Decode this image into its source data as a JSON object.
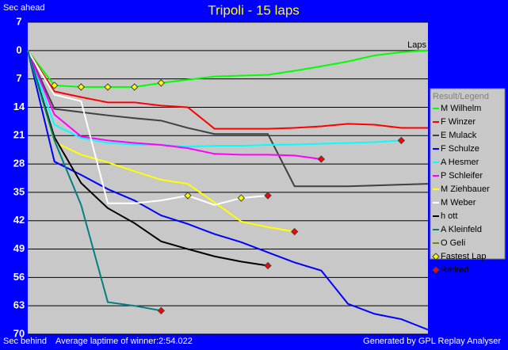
{
  "chart_data": {
    "type": "line",
    "title": "Tripoli - 15 laps",
    "y_top_label": "Sec ahead",
    "y_bottom_label": "Sec behind",
    "x_label": "Laps",
    "footer_left": "Average laptime of winner:2:54.022",
    "footer_right": "Generated by GPL Replay Analyser",
    "legend_title": "Result/Legend",
    "x": [
      0,
      1,
      2,
      3,
      4,
      5,
      6,
      7,
      8,
      9,
      10,
      11,
      12,
      13,
      14,
      15
    ],
    "xlim": [
      0,
      15
    ],
    "ylim": [
      -7,
      70
    ],
    "inverted_y": true,
    "yticks": [
      {
        "value": -7,
        "label": "7"
      },
      0,
      7,
      14,
      21,
      28,
      35,
      42,
      49,
      56,
      63,
      70
    ],
    "grid": true,
    "series": [
      {
        "name": "M Wilhelm",
        "color": "#00ff00",
        "values": [
          0,
          8.6,
          9,
          9,
          9,
          8,
          7.2,
          6.4,
          6.2,
          6,
          5,
          3.9,
          2.7,
          1.2,
          0.4,
          0
        ],
        "fastest_laps": [
          1,
          2,
          3,
          4,
          5
        ],
        "retired": false
      },
      {
        "name": "F Winzer",
        "color": "#ff0000",
        "values": [
          0,
          10.1,
          11.5,
          12.8,
          12.8,
          13.6,
          14,
          19.3,
          19.3,
          19.3,
          19.1,
          18.7,
          18.1,
          18.3,
          19.1,
          19.1
        ],
        "fastest_laps": [],
        "retired": false
      },
      {
        "name": "E Mulack",
        "color": "#404040",
        "values": [
          0,
          14.4,
          15.2,
          16,
          16.7,
          17.3,
          19.1,
          20.6,
          20.6,
          20.6,
          33.5,
          33.5,
          33.5,
          33.3,
          33.1,
          32.9
        ],
        "fastest_laps": [],
        "retired": false
      },
      {
        "name": "F Schulze",
        "color": "#0000ff",
        "values": [
          0,
          27.4,
          30.7,
          34.2,
          37,
          40.7,
          42.8,
          45.3,
          47.3,
          49.8,
          52.3,
          54.3,
          62.5,
          65,
          66.3,
          68.9
        ],
        "fastest_laps": [],
        "retired": false
      },
      {
        "name": "A Hesmer",
        "color": "#00ffff",
        "values": [
          0,
          18.3,
          21.6,
          22.8,
          23.2,
          23.3,
          23.7,
          23.5,
          23.5,
          23.3,
          23.2,
          23,
          22.8,
          22.6,
          22.2,
          null
        ],
        "fastest_laps": [],
        "retired": true
      },
      {
        "name": "P Schleifer",
        "color": "#ff00ff",
        "values": [
          0,
          15.8,
          21.2,
          22.2,
          22.8,
          23.3,
          24.1,
          25.5,
          25.7,
          25.7,
          25.9,
          26.8,
          null,
          null,
          null,
          null
        ],
        "fastest_laps": [],
        "retired": true
      },
      {
        "name": "M Ziehbauer",
        "color": "#ffff00",
        "values": [
          0,
          22.6,
          25.7,
          27.6,
          29.8,
          31.9,
          32.9,
          37.5,
          42.2,
          43.6,
          44.7,
          null,
          null,
          null,
          null,
          null
        ],
        "fastest_laps": [],
        "retired": true
      },
      {
        "name": "M Weber",
        "color": "#ffffff",
        "values": [
          0,
          10.9,
          12.5,
          37.7,
          37.7,
          37,
          35.8,
          38.1,
          36.4,
          35.8,
          null,
          null,
          null,
          null,
          null,
          null
        ],
        "fastest_laps": [
          6,
          8
        ],
        "retired": true
      },
      {
        "name": "h ott",
        "color": "#000000",
        "values": [
          0,
          21.4,
          32.7,
          38.9,
          42.6,
          47.1,
          49,
          50.8,
          52.1,
          53.1,
          null,
          null,
          null,
          null,
          null,
          null
        ],
        "fastest_laps": [],
        "retired": true
      },
      {
        "name": "A Kleinfeld",
        "color": "#008080",
        "values": [
          0,
          22.2,
          38.1,
          62.1,
          63,
          64.2,
          null,
          null,
          null,
          null,
          null,
          null,
          null,
          null,
          null,
          null
        ],
        "fastest_laps": [],
        "retired": true
      },
      {
        "name": "O Geli",
        "color": "#808000",
        "values": [
          null,
          null,
          null,
          null,
          null,
          null,
          null,
          null,
          null,
          null,
          null,
          null,
          null,
          null,
          null,
          null
        ],
        "fastest_laps": [],
        "retired": false
      }
    ],
    "legend_markers": [
      {
        "name": "Fastest Lap",
        "color": "#ffff00"
      },
      {
        "name": "Retired",
        "color": "#ff0000"
      }
    ]
  }
}
